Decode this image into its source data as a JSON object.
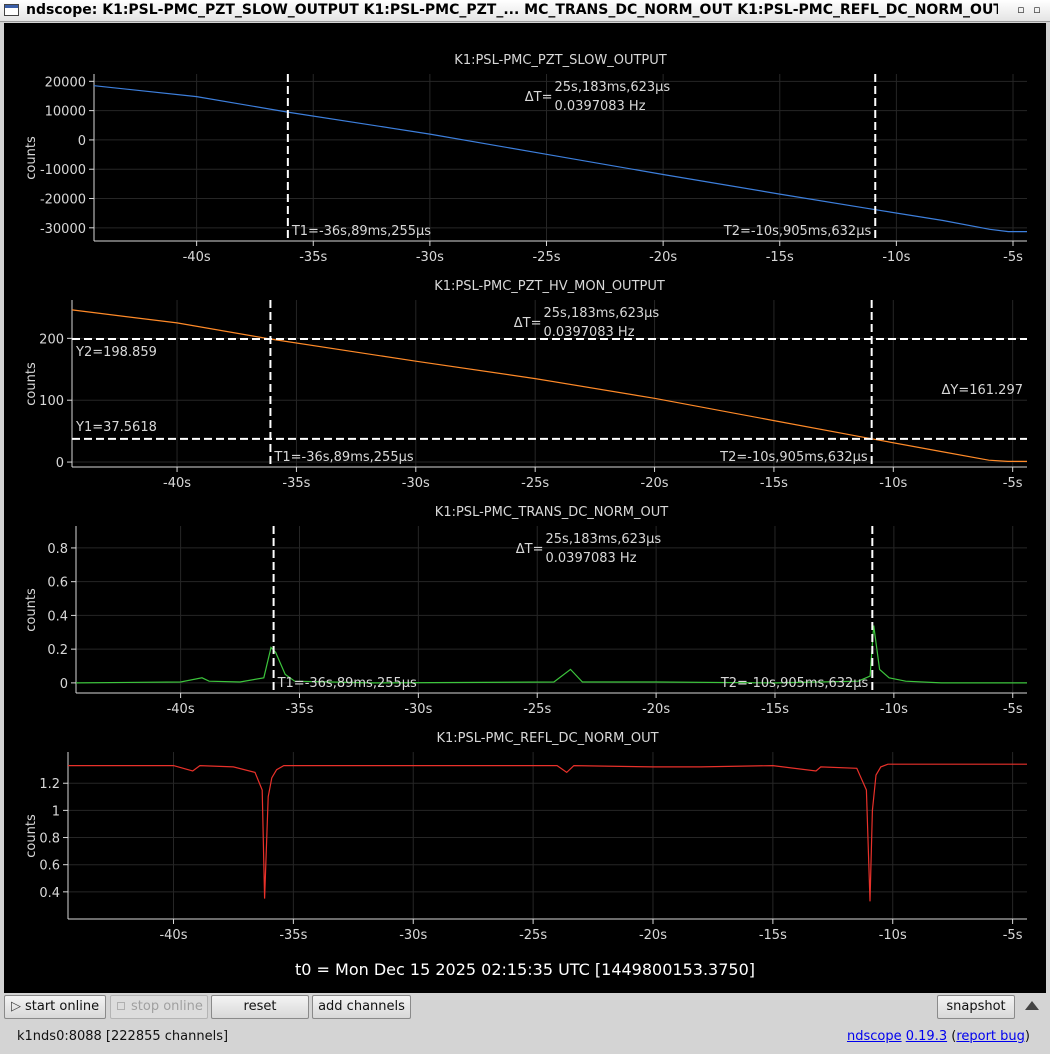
{
  "window": {
    "title": "ndscope: K1:PSL-PMC_PZT_SLOW_OUTPUT K1:PSL-PMC_PZT_... MC_TRANS_DC_NORM_OUT K1:PSL-PMC_REFL_DC_NORM_OUT",
    "minimize_glyph": "▫",
    "maximize_glyph": "▫"
  },
  "cursors": {
    "t1_label": "T1=-36s,89ms,255µs",
    "t2_label": "T2=-10s,905ms,632µs",
    "dt_prefix": "ΔT=",
    "dt_value": "25s,183ms,623µs",
    "dt_freq": "0.0397083 Hz",
    "t1": -36.089,
    "t2": -10.906
  },
  "time_axis": {
    "ticks": [
      -40,
      -35,
      -30,
      -25,
      -20,
      -15,
      -10,
      -5
    ],
    "tick_labels": [
      "-40s",
      "-35s",
      "-30s",
      "-25s",
      "-20s",
      "-15s",
      "-10s",
      "-5s"
    ],
    "range": [
      -44.4,
      -4.4
    ]
  },
  "ylabel": "counts",
  "t0_label": "t0 = Mon Dec 15 2025 02:15:35 UTC [1449800153.3750]",
  "colors": {
    "background": "#000000",
    "grid": "#262626",
    "axis": "#d8d8d8",
    "cursor": "#ffffff",
    "slow": "#3d7fdc",
    "hv": "#ff8a28",
    "trans": "#3cc43c",
    "refl": "#e8312a"
  },
  "buttons": {
    "start_online": "start online",
    "stop_online": "stop online",
    "reset": "reset",
    "add_channels": "add channels",
    "snapshot": "snapshot"
  },
  "status": {
    "server": "k1nds0:8088  [222855 channels]",
    "version_link": "ndscope",
    "version": "0.19.3",
    "report_link": "report bug"
  },
  "chart_data": [
    {
      "type": "line",
      "title": "K1:PSL-PMC_PZT_SLOW_OUTPUT",
      "ylabel": "counts",
      "ylim": [
        -34500,
        22500
      ],
      "yticks": [
        20000,
        10000,
        0,
        -10000,
        -20000,
        -30000
      ],
      "series": [
        {
          "color": "slow",
          "x": [
            -44.4,
            -40,
            -36.1,
            -30,
            -25,
            -20,
            -15,
            -10.9,
            -8,
            -6,
            -5.2,
            -4.4
          ],
          "values": [
            18500,
            14800,
            9500,
            2000,
            -4900,
            -11800,
            -18500,
            -23800,
            -27500,
            -30500,
            -31300,
            -31300
          ]
        }
      ]
    },
    {
      "type": "line",
      "title": "K1:PSL-PMC_PZT_HV_MON_OUTPUT",
      "ylabel": "counts",
      "ylim": [
        -8,
        262
      ],
      "yticks": [
        0,
        100,
        200
      ],
      "series": [
        {
          "color": "hv",
          "x": [
            -44.4,
            -40,
            -36.1,
            -30,
            -25,
            -20,
            -15,
            -10.9,
            -8,
            -6,
            -5.2,
            -4.4
          ],
          "values": [
            246,
            225,
            198.9,
            163,
            135,
            103,
            67,
            37.6,
            17,
            3,
            1,
            1
          ]
        }
      ],
      "hcursors": {
        "y1": 37.5618,
        "y2": 198.859,
        "y1_label": "Y1=37.5618",
        "y2_label": "Y2=198.859",
        "dy_label": "ΔY=161.297"
      }
    },
    {
      "type": "line",
      "title": "K1:PSL-PMC_TRANS_DC_NORM_OUT",
      "ylabel": "counts",
      "ylim": [
        -0.06,
        0.93
      ],
      "yticks": [
        0,
        0.2,
        0.4,
        0.6,
        0.8
      ],
      "yticklabels": [
        "0",
        "0.2",
        "0.4",
        "0.6",
        "0.8"
      ],
      "series": [
        {
          "color": "trans",
          "x": [
            -44.4,
            -40,
            -39.1,
            -38.8,
            -37.5,
            -36.5,
            -36.2,
            -36.0,
            -35.6,
            -35.2,
            -32,
            -24.3,
            -23.6,
            -23.1,
            -20,
            -15,
            -11.5,
            -11.0,
            -10.85,
            -10.6,
            -10.2,
            -9.5,
            -8,
            -4.4
          ],
          "values": [
            0.0,
            0.005,
            0.03,
            0.01,
            0.005,
            0.03,
            0.21,
            0.18,
            0.05,
            0.01,
            0.0,
            0.005,
            0.08,
            0.005,
            0.005,
            0.0,
            0.01,
            0.04,
            0.34,
            0.08,
            0.03,
            0.01,
            0.0,
            0.0
          ]
        }
      ]
    },
    {
      "type": "line",
      "title": "K1:PSL-PMC_REFL_DC_NORM_OUT",
      "ylabel": "counts",
      "ylim": [
        0.2,
        1.43
      ],
      "yticks": [
        0.4,
        0.6,
        0.8,
        1.0,
        1.2
      ],
      "yticklabels": [
        "0.4",
        "0.6",
        "0.8",
        "1",
        "1.2"
      ],
      "series": [
        {
          "color": "refl",
          "x": [
            -44.4,
            -40,
            -39.2,
            -38.9,
            -37.5,
            -36.6,
            -36.3,
            -36.2,
            -36.05,
            -35.9,
            -35.7,
            -35.4,
            -32,
            -24,
            -23.6,
            -23.3,
            -20,
            -18,
            -15,
            -13.2,
            -13.0,
            -11.5,
            -11.1,
            -10.95,
            -10.85,
            -10.7,
            -10.5,
            -10.2,
            -4.4
          ],
          "values": [
            1.33,
            1.33,
            1.29,
            1.33,
            1.32,
            1.28,
            1.15,
            0.35,
            1.1,
            1.24,
            1.3,
            1.33,
            1.33,
            1.33,
            1.28,
            1.33,
            1.32,
            1.32,
            1.33,
            1.29,
            1.32,
            1.31,
            1.15,
            0.33,
            1.0,
            1.26,
            1.32,
            1.34,
            1.34
          ]
        }
      ]
    }
  ]
}
